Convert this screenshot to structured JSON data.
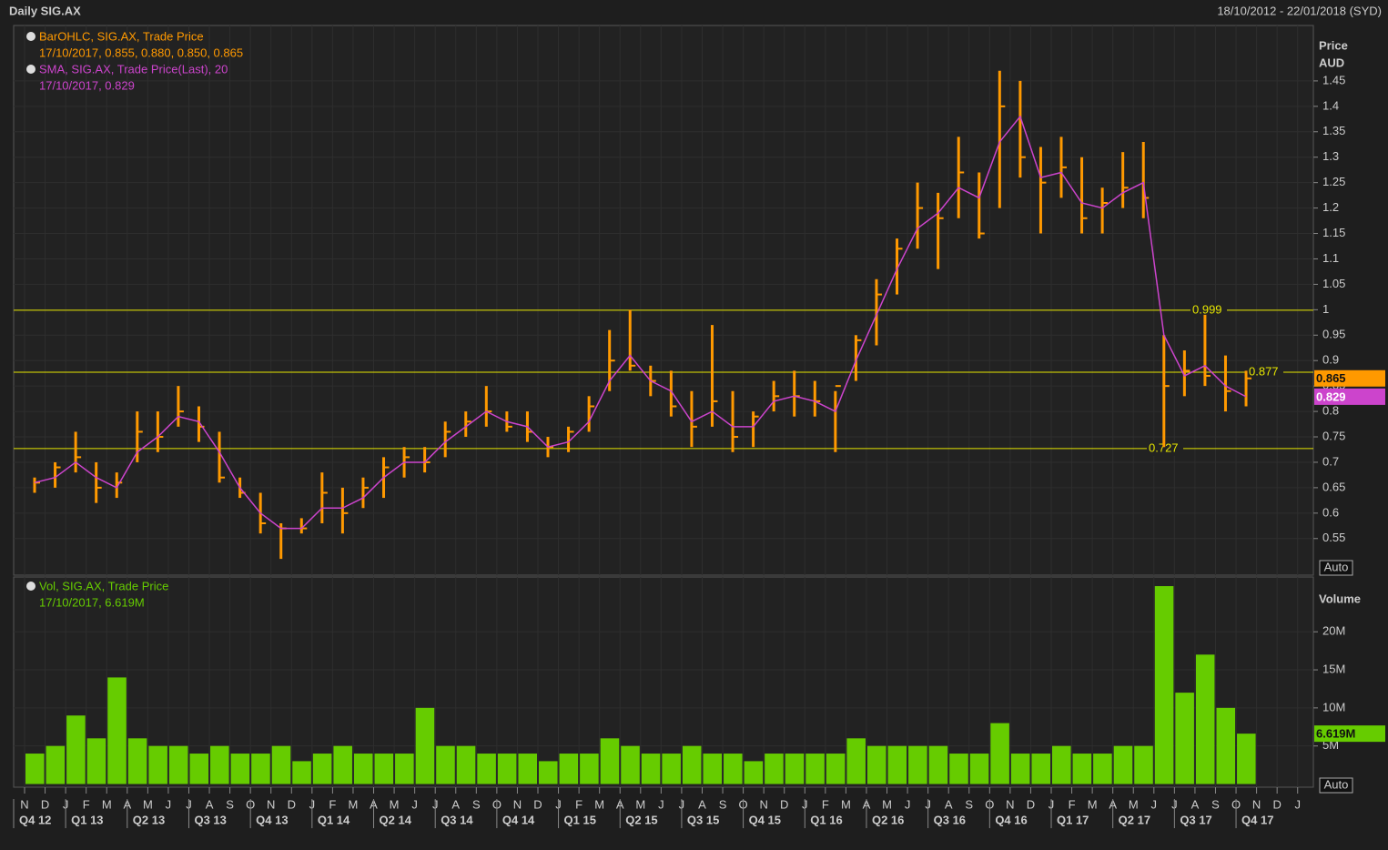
{
  "header": {
    "title": "Daily SIG.AX",
    "range": "18/10/2012 - 22/01/2018 (SYD)"
  },
  "chart_data": [
    {
      "type": "ohlc",
      "y_title": "Price",
      "y_unit": "AUD",
      "scale_button": "Auto",
      "grid": true,
      "ylim": [
        0.478,
        1.559
      ],
      "yticks": [
        0.55,
        0.6,
        0.65,
        0.7,
        0.75,
        0.8,
        0.85,
        0.9,
        0.95,
        1,
        1.05,
        1.1,
        1.15,
        1.2,
        1.25,
        1.3,
        1.35,
        1.4,
        1.45
      ],
      "levels": [
        0.999,
        0.877,
        0.727
      ],
      "level_color": "#e6e600",
      "series": [
        {
          "name": "BarOHLC, SIG.AX, Trade Price",
          "legend_value": "17/10/2017, 0.855, 0.880, 0.850, 0.865",
          "color": "#ff9900",
          "high": [
            0.67,
            0.7,
            0.76,
            0.7,
            0.68,
            0.8,
            0.8,
            0.85,
            0.81,
            0.76,
            0.67,
            0.64,
            0.58,
            0.59,
            0.68,
            0.65,
            0.67,
            0.71,
            0.73,
            0.73,
            0.78,
            0.8,
            0.85,
            0.8,
            0.8,
            0.75,
            0.77,
            0.83,
            0.96,
            1.0,
            0.89,
            0.88,
            0.84,
            0.97,
            0.84,
            0.8,
            0.86,
            0.88,
            0.86,
            0.84,
            0.95,
            1.06,
            1.14,
            1.25,
            1.23,
            1.34,
            1.27,
            1.47,
            1.45,
            1.32,
            1.34,
            1.3,
            1.24,
            1.31,
            1.33,
            0.95,
            0.92,
            0.99,
            0.91,
            0.88,
            null,
            null,
            null
          ],
          "low": [
            0.64,
            0.65,
            0.68,
            0.62,
            0.63,
            0.7,
            0.72,
            0.77,
            0.74,
            0.66,
            0.63,
            0.56,
            0.51,
            0.56,
            0.58,
            0.56,
            0.61,
            0.63,
            0.67,
            0.68,
            0.71,
            0.75,
            0.77,
            0.76,
            0.74,
            0.71,
            0.72,
            0.76,
            0.84,
            0.88,
            0.83,
            0.79,
            0.73,
            0.77,
            0.72,
            0.73,
            0.8,
            0.79,
            0.79,
            0.72,
            0.86,
            0.93,
            1.03,
            1.12,
            1.08,
            1.18,
            1.14,
            1.2,
            1.26,
            1.15,
            1.22,
            1.15,
            1.15,
            1.2,
            1.18,
            0.73,
            0.83,
            0.85,
            0.8,
            0.81,
            null,
            null,
            null
          ],
          "close": [
            0.66,
            0.69,
            0.71,
            0.65,
            0.66,
            0.76,
            0.75,
            0.8,
            0.77,
            0.67,
            0.64,
            0.58,
            0.57,
            0.57,
            0.64,
            0.6,
            0.65,
            0.69,
            0.71,
            0.7,
            0.76,
            0.78,
            0.8,
            0.77,
            0.76,
            0.73,
            0.76,
            0.81,
            0.9,
            0.89,
            0.86,
            0.81,
            0.77,
            0.82,
            0.75,
            0.79,
            0.83,
            0.83,
            0.82,
            0.85,
            0.94,
            1.03,
            1.12,
            1.2,
            1.18,
            1.27,
            1.15,
            1.4,
            1.3,
            1.25,
            1.28,
            1.18,
            1.21,
            1.24,
            1.22,
            0.85,
            0.88,
            0.87,
            0.84,
            0.865,
            null,
            null,
            null
          ],
          "last_value": 0.865
        },
        {
          "name": "SMA, SIG.AX, Trade Price(Last),  20",
          "legend_value": "17/10/2017, 0.829",
          "color": "#cc44cc",
          "values": [
            0.66,
            0.67,
            0.7,
            0.67,
            0.65,
            0.72,
            0.75,
            0.79,
            0.78,
            0.72,
            0.65,
            0.6,
            0.57,
            0.57,
            0.61,
            0.61,
            0.63,
            0.67,
            0.7,
            0.7,
            0.74,
            0.77,
            0.8,
            0.78,
            0.77,
            0.73,
            0.74,
            0.78,
            0.86,
            0.91,
            0.86,
            0.84,
            0.78,
            0.8,
            0.77,
            0.77,
            0.82,
            0.83,
            0.82,
            0.8,
            0.9,
            0.99,
            1.08,
            1.16,
            1.19,
            1.24,
            1.22,
            1.33,
            1.38,
            1.26,
            1.27,
            1.21,
            1.2,
            1.23,
            1.25,
            0.95,
            0.87,
            0.89,
            0.85,
            0.829,
            null,
            null,
            null
          ],
          "last_value": 0.829
        }
      ]
    },
    {
      "type": "bar",
      "y_title": "Volume",
      "scale_button": "Auto",
      "ylim": [
        0,
        27200000
      ],
      "yticks": [
        {
          "value": 5000000,
          "label": "5M"
        },
        {
          "value": 10000000,
          "label": "10M"
        },
        {
          "value": 15000000,
          "label": "15M"
        },
        {
          "value": 20000000,
          "label": "20M"
        }
      ],
      "categories": [
        "N",
        "D",
        "J",
        "F",
        "M",
        "A",
        "M",
        "J",
        "J",
        "A",
        "S",
        "O",
        "N",
        "D",
        "J",
        "F",
        "M",
        "A",
        "M",
        "J",
        "J",
        "A",
        "S",
        "O",
        "N",
        "D",
        "J",
        "F",
        "M",
        "A",
        "M",
        "J",
        "J",
        "A",
        "S",
        "O",
        "N",
        "D",
        "J",
        "F",
        "M",
        "A",
        "M",
        "J",
        "J",
        "A",
        "S",
        "O",
        "N",
        "D",
        "J",
        "F",
        "M",
        "A",
        "M",
        "J",
        "J",
        "A",
        "S",
        "O",
        "N",
        "D",
        "J"
      ],
      "quarters": [
        "Q4 12",
        "Q1 13",
        "Q2 13",
        "Q3 13",
        "Q4 13",
        "Q1 14",
        "Q2 14",
        "Q3 14",
        "Q4 14",
        "Q1 15",
        "Q2 15",
        "Q3 15",
        "Q4 15",
        "Q1 16",
        "Q2 16",
        "Q3 16",
        "Q4 16",
        "Q1 17",
        "Q2 17",
        "Q3 17",
        "Q4 17"
      ],
      "series": [
        {
          "name": "Vol, SIG.AX, Trade Price",
          "legend_value": "17/10/2017, 6.619M",
          "color": "#66cc00",
          "values": [
            4000000,
            5000000,
            9000000,
            6000000,
            14000000,
            6000000,
            5000000,
            5000000,
            4000000,
            5000000,
            4000000,
            4000000,
            5000000,
            3000000,
            4000000,
            5000000,
            4000000,
            4000000,
            4000000,
            10000000,
            5000000,
            5000000,
            4000000,
            4000000,
            4000000,
            3000000,
            4000000,
            4000000,
            6000000,
            5000000,
            4000000,
            4000000,
            5000000,
            4000000,
            4000000,
            3000000,
            4000000,
            4000000,
            4000000,
            4000000,
            6000000,
            5000000,
            5000000,
            5000000,
            5000000,
            4000000,
            4000000,
            8000000,
            4000000,
            4000000,
            5000000,
            4000000,
            4000000,
            5000000,
            5000000,
            26000000,
            12000000,
            17000000,
            10000000,
            6619000,
            null,
            null,
            null
          ],
          "last_value": {
            "value": 6619000,
            "label": "6.619M"
          }
        }
      ]
    }
  ]
}
